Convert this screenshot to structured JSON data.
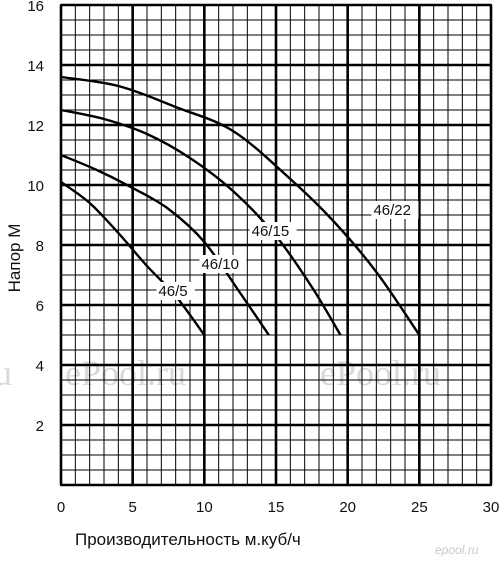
{
  "chart_data": {
    "type": "line",
    "xlabel": "Производительность м.куб/ч",
    "ylabel": "Напор М",
    "xlim": [
      0,
      30
    ],
    "ylim": [
      0,
      16
    ],
    "x_axis_ticks": [
      0,
      5,
      10,
      15,
      20,
      25,
      30
    ],
    "y_axis_ticks": [
      2,
      4,
      6,
      8,
      10,
      12,
      14,
      16
    ],
    "grid": true,
    "series": [
      {
        "name": "46/5",
        "x": [
          0,
          2,
          4,
          6,
          8,
          10
        ],
        "y": [
          10.1,
          9.4,
          8.4,
          7.3,
          6.3,
          5.0
        ]
      },
      {
        "name": "46/10",
        "x": [
          0,
          2.5,
          5,
          7.5,
          10,
          12.5,
          14.5
        ],
        "y": [
          11.0,
          10.5,
          9.9,
          9.2,
          8.1,
          6.4,
          5.0
        ]
      },
      {
        "name": "46/15",
        "x": [
          0,
          3,
          6,
          9,
          12,
          15,
          17.5,
          19.5
        ],
        "y": [
          12.5,
          12.2,
          11.7,
          10.9,
          9.8,
          8.3,
          6.6,
          5.0
        ]
      },
      {
        "name": "46/22",
        "x": [
          0,
          4,
          8,
          12,
          16,
          19,
          22,
          25
        ],
        "y": [
          13.6,
          13.3,
          12.6,
          11.8,
          10.2,
          8.8,
          7.1,
          5.0
        ]
      }
    ],
    "series_labels": [
      {
        "text": "46/5",
        "anchor_x": 6.8,
        "anchor_y": 6.3
      },
      {
        "text": "46/10",
        "anchor_x": 9.8,
        "anchor_y": 7.2
      },
      {
        "text": "46/15",
        "anchor_x": 13.3,
        "anchor_y": 8.3
      },
      {
        "text": "46/22",
        "anchor_x": 21.8,
        "anchor_y": 9.0
      }
    ]
  },
  "watermarks": [
    "ePool.ru",
    "ePool.ru",
    "ru"
  ],
  "brand_mark": "epool.ru"
}
